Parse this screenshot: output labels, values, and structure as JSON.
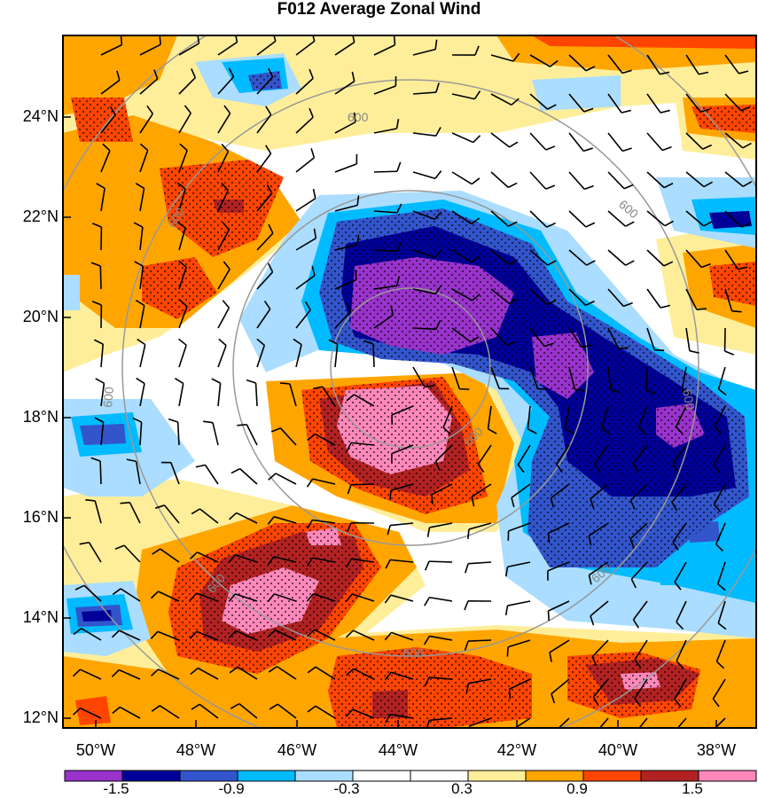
{
  "title": "F012 Average Zonal Wind",
  "lat_labels": [
    "24°N",
    "22°N",
    "20°N",
    "18°N",
    "16°N",
    "14°N",
    "12°N"
  ],
  "lon_labels": [
    "50°W",
    "48°W",
    "46°W",
    "44°W",
    "42°W",
    "40°W",
    "38°W"
  ],
  "contour_label": "600",
  "colorbar": {
    "colors": [
      "#9933cc",
      "#000099",
      "#3355cc",
      "#00bbff",
      "#aaddff",
      "#ffffff",
      "#ffffff",
      "#ffee99",
      "#ffa500",
      "#ff4500",
      "#b22222",
      "#ff88bb"
    ],
    "labels": [
      "-1.5",
      "-0.9",
      "-0.3",
      "0.3",
      "0.9",
      "1.5"
    ]
  }
}
